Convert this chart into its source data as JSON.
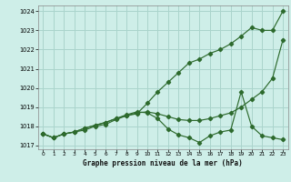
{
  "xlabel": "Graphe pression niveau de la mer (hPa)",
  "background_color": "#ceeee8",
  "grid_color": "#aad4cc",
  "line_color": "#2d6a2d",
  "x": [
    0,
    1,
    2,
    3,
    4,
    5,
    6,
    7,
    8,
    9,
    10,
    11,
    12,
    13,
    14,
    15,
    16,
    17,
    18,
    19,
    20,
    21,
    22,
    23
  ],
  "line1": [
    1017.6,
    1017.4,
    1017.6,
    1017.7,
    1017.8,
    1018.0,
    1018.1,
    1018.35,
    1018.55,
    1018.65,
    1019.2,
    1019.8,
    1020.3,
    1020.8,
    1021.3,
    1021.5,
    1021.8,
    1022.0,
    1022.3,
    1022.7,
    1023.15,
    1023.0,
    1023.0,
    1024.0
  ],
  "line2": [
    1017.6,
    1017.4,
    1017.6,
    1017.7,
    1017.9,
    1018.05,
    1018.2,
    1018.4,
    1018.55,
    1018.7,
    1018.75,
    1018.65,
    1018.5,
    1018.35,
    1018.3,
    1018.3,
    1018.4,
    1018.55,
    1018.7,
    1019.0,
    1019.4,
    1019.8,
    1020.5,
    1022.5
  ],
  "line3": [
    1017.6,
    1017.4,
    1017.6,
    1017.7,
    1017.9,
    1018.05,
    1018.2,
    1018.4,
    1018.6,
    1018.75,
    1018.7,
    1018.4,
    1017.85,
    1017.55,
    1017.4,
    1017.15,
    1017.5,
    1017.7,
    1017.8,
    1019.8,
    1018.0,
    1017.5,
    1017.4,
    1017.3
  ],
  "ylim": [
    1016.8,
    1024.3
  ],
  "yticks": [
    1017,
    1018,
    1019,
    1020,
    1021,
    1022,
    1023,
    1024
  ],
  "xticks": [
    0,
    1,
    2,
    3,
    4,
    5,
    6,
    7,
    8,
    9,
    10,
    11,
    12,
    13,
    14,
    15,
    16,
    17,
    18,
    19,
    20,
    21,
    22,
    23
  ]
}
